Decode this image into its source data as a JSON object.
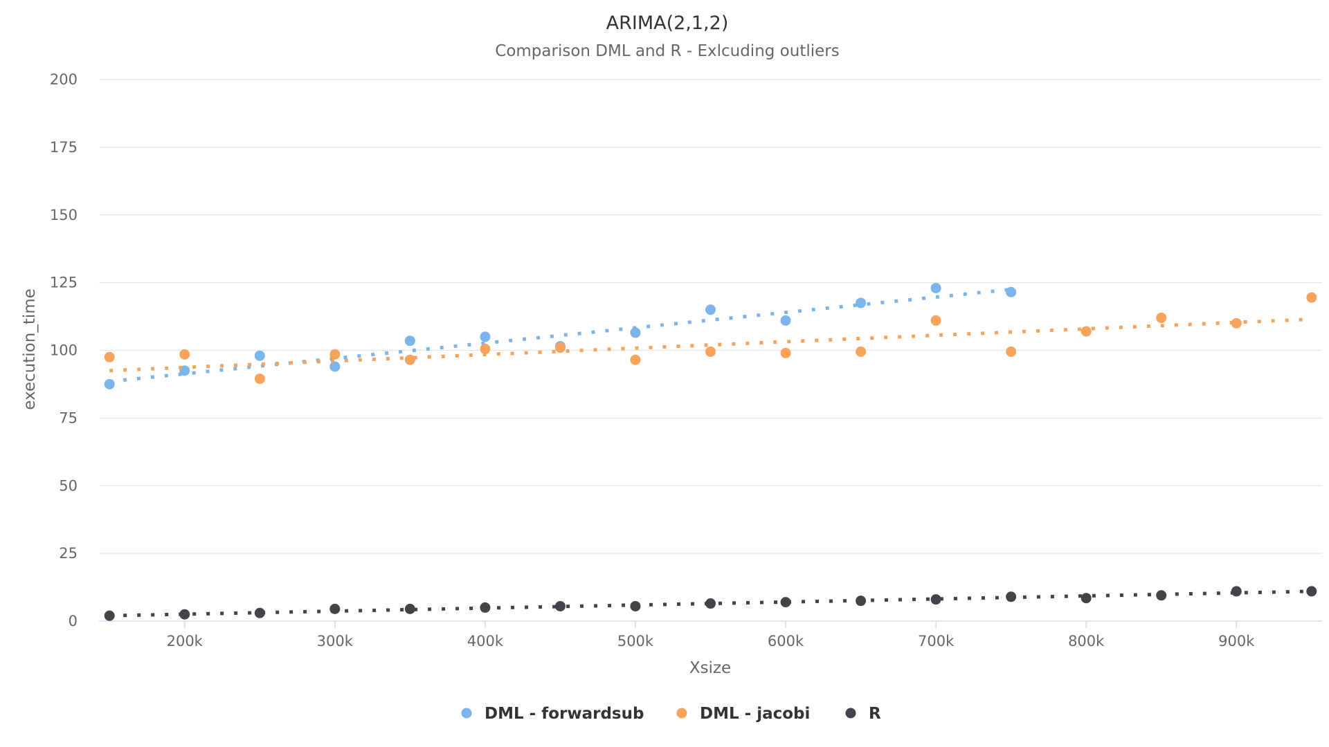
{
  "chart_data": {
    "type": "scatter",
    "title": "ARIMA(2,1,2)",
    "subtitle": "Comparison DML and R - Exlcuding outliers",
    "xlabel": "Xsize",
    "ylabel": "execution_time",
    "xlim": [
      143000,
      957000
    ],
    "ylim": [
      0,
      200
    ],
    "x_ticks": [
      200000,
      300000,
      400000,
      500000,
      600000,
      700000,
      800000,
      900000
    ],
    "x_tick_labels": [
      "200k",
      "300k",
      "400k",
      "500k",
      "600k",
      "700k",
      "800k",
      "900k"
    ],
    "y_ticks": [
      0,
      25,
      50,
      75,
      100,
      125,
      150,
      175,
      200
    ],
    "y_tick_labels": [
      "0",
      "25",
      "50",
      "75",
      "100",
      "125",
      "150",
      "175",
      "200"
    ],
    "grid": true,
    "legend_position": "bottom-center",
    "series": [
      {
        "name": "DML - forwardsub",
        "color": "#7cb5ec",
        "x": [
          150000,
          200000,
          250000,
          300000,
          350000,
          400000,
          450000,
          500000,
          550000,
          600000,
          650000,
          700000,
          750000
        ],
        "values": [
          87.5,
          92.5,
          98,
          94,
          103.5,
          105,
          101.5,
          106.5,
          115,
          111,
          117.5,
          123,
          121.5
        ],
        "trend": [
          88.5,
          122.5
        ]
      },
      {
        "name": "DML - jacobi",
        "color": "#f7a35c",
        "x": [
          150000,
          200000,
          250000,
          300000,
          350000,
          400000,
          450000,
          500000,
          550000,
          600000,
          650000,
          700000,
          750000,
          800000,
          850000,
          900000,
          950000
        ],
        "values": [
          97.5,
          98.5,
          89.5,
          98.5,
          96.5,
          100.5,
          101,
          96.5,
          99.5,
          99,
          99.5,
          111,
          99.5,
          107,
          112,
          110,
          119.5
        ],
        "trend": [
          92.5,
          111.5
        ]
      },
      {
        "name": "R",
        "color": "#434348",
        "x": [
          150000,
          200000,
          250000,
          300000,
          350000,
          400000,
          450000,
          500000,
          550000,
          600000,
          650000,
          700000,
          750000,
          800000,
          850000,
          900000,
          950000
        ],
        "values": [
          2,
          2.5,
          3,
          4.5,
          4.5,
          5,
          5.5,
          5.5,
          6.5,
          7,
          7.5,
          8,
          9,
          8.5,
          9.5,
          11,
          11
        ],
        "trend": [
          2,
          11
        ]
      }
    ]
  }
}
